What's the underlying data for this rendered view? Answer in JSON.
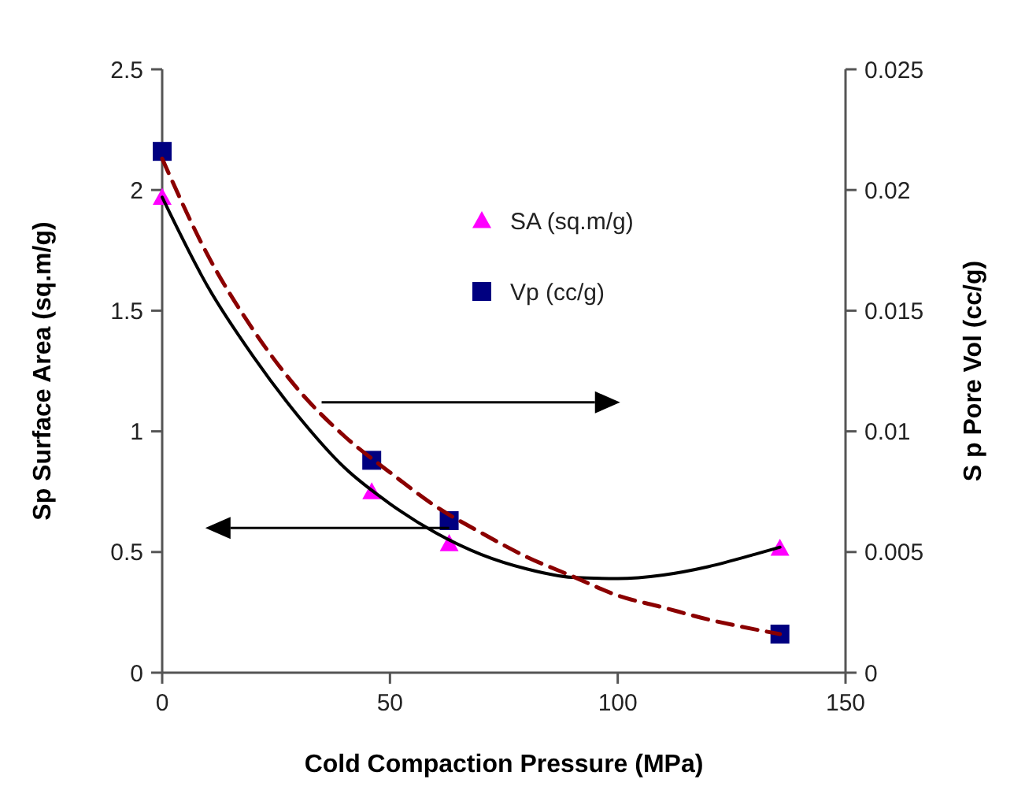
{
  "chart_data": {
    "type": "scatter",
    "xlabel": "Cold Compaction Pressure (MPa)",
    "ylabel": "Sp Surface Area (sq.m/g)",
    "y2label": "S p Pore Vol (cc/g)",
    "xlim": [
      0,
      150
    ],
    "xticks": [
      0,
      50,
      100,
      150
    ],
    "ylim": [
      0,
      2.5
    ],
    "yticks": [
      0,
      0.5,
      1,
      1.5,
      2,
      2.5
    ],
    "y2lim": [
      0,
      0.025
    ],
    "y2ticks": [
      0,
      0.005,
      0.01,
      0.015,
      0.02,
      0.025
    ],
    "legend": "top right",
    "grid": false,
    "series": [
      {
        "name": "SA (sq.m/g)",
        "marker": "triangle",
        "color": "#ff00ff",
        "x": [
          0,
          46,
          63,
          135.6
        ],
        "values": [
          1.97,
          0.75,
          0.535,
          0.516
        ]
      },
      {
        "name": "Vp (cc/g)",
        "marker": "square",
        "color": "#000080",
        "axis": "y2",
        "x": [
          0,
          46,
          63,
          135.6
        ],
        "values": [
          0.0216,
          0.0088,
          0.0063,
          0.0016
        ]
      },
      {
        "type": "line",
        "marker": "none",
        "line_style": "solid",
        "color": "#000000",
        "x": [
          0,
          10,
          20,
          30,
          40,
          50,
          60,
          70,
          80,
          90,
          100,
          110,
          120,
          130,
          135.6
        ],
        "values": [
          1.97,
          1.6,
          1.31,
          1.06,
          0.85,
          0.7,
          0.58,
          0.49,
          0.43,
          0.395,
          0.39,
          0.405,
          0.44,
          0.49,
          0.52
        ]
      },
      {
        "type": "line",
        "marker": "none",
        "line_style": "dashed",
        "color": "#8b0000",
        "axis": "y2",
        "x": [
          0,
          10,
          20,
          30,
          40,
          50,
          60,
          70,
          80,
          90,
          100,
          110,
          120,
          130,
          135.6
        ],
        "values": [
          0.0213,
          0.0173,
          0.0142,
          0.0117,
          0.0098,
          0.0083,
          0.0069,
          0.0058,
          0.0048,
          0.004,
          0.0032,
          0.0027,
          0.0022,
          0.0018,
          0.0016
        ]
      }
    ]
  }
}
